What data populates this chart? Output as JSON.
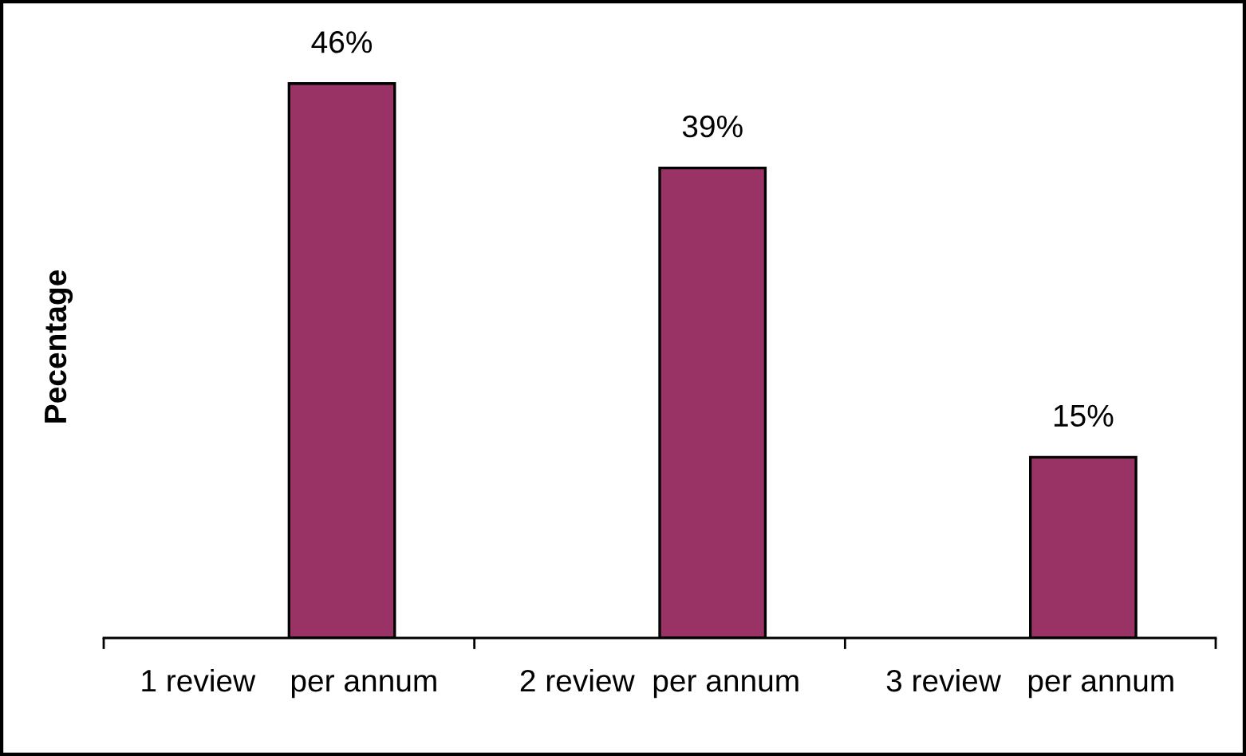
{
  "chart_data": {
    "type": "bar",
    "ylabel": "Pecentage",
    "categories": [
      "1 review    per annum",
      "2 review  per annum",
      "3 review   per annum"
    ],
    "values": [
      46,
      39,
      15
    ],
    "color": "#993366",
    "value_labels": [
      "46%",
      "39%",
      "15%"
    ],
    "tick_labels": "x"
  }
}
